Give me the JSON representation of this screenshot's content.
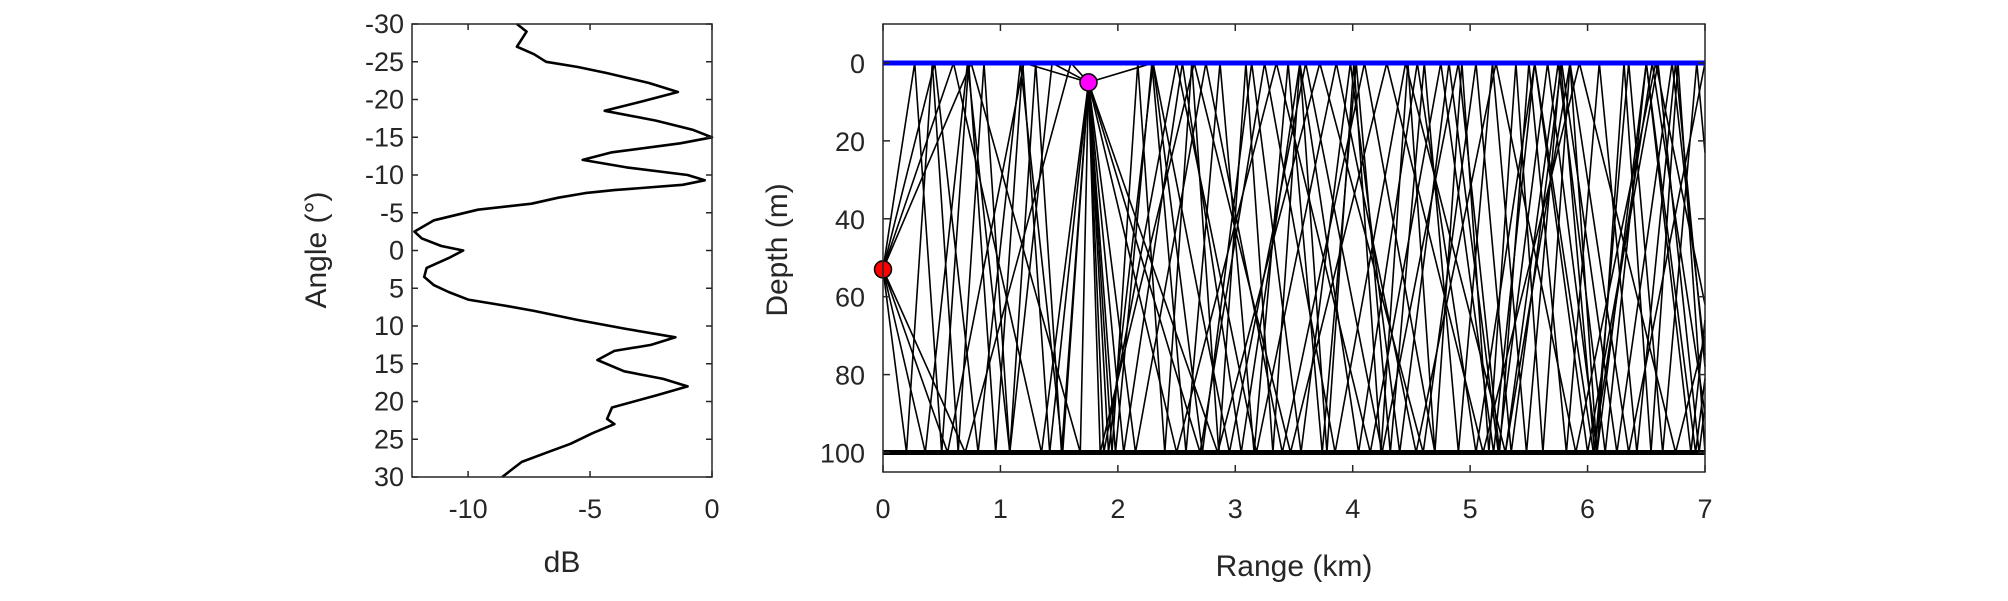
{
  "chart_data": [
    {
      "type": "line",
      "xlabel": "dB",
      "ylabel": "Angle (°)",
      "xlim": [
        -12.3,
        0
      ],
      "ylim": [
        -30,
        30
      ],
      "y_reversed": true,
      "xticks": [
        -10,
        -5,
        0
      ],
      "yticks": [
        -30,
        -25,
        -20,
        -15,
        -10,
        -5,
        0,
        5,
        10,
        15,
        20,
        25,
        30
      ],
      "grid": false,
      "series": [
        {
          "color": "#000000",
          "points": [
            [
              -8.0,
              -30
            ],
            [
              -7.6,
              -29
            ],
            [
              -7.8,
              -28
            ],
            [
              -8.0,
              -27
            ],
            [
              -7.3,
              -26
            ],
            [
              -6.8,
              -25
            ],
            [
              -5.5,
              -24.3
            ],
            [
              -4.3,
              -23.5
            ],
            [
              -2.6,
              -22.2
            ],
            [
              -1.4,
              -21
            ],
            [
              -2.8,
              -19.8
            ],
            [
              -4.4,
              -18.5
            ],
            [
              -2.3,
              -17.2
            ],
            [
              -0.8,
              -16
            ],
            [
              0,
              -15
            ],
            [
              -1.3,
              -14.2
            ],
            [
              -4.1,
              -13
            ],
            [
              -5.3,
              -12
            ],
            [
              -3.5,
              -11
            ],
            [
              -1.0,
              -10
            ],
            [
              -0.3,
              -9.3
            ],
            [
              -1.2,
              -8.7
            ],
            [
              -4.0,
              -8.0
            ],
            [
              -5.2,
              -7.6
            ],
            [
              -6.3,
              -7
            ],
            [
              -7.4,
              -6.2
            ],
            [
              -9.6,
              -5.4
            ],
            [
              -11.4,
              -4
            ],
            [
              -12.2,
              -2.5
            ],
            [
              -11.9,
              -1.6
            ],
            [
              -11.1,
              -0.6
            ],
            [
              -10.2,
              0
            ],
            [
              -10.8,
              1.0
            ],
            [
              -11.7,
              2.3
            ],
            [
              -11.8,
              3.5
            ],
            [
              -11.4,
              4.6
            ],
            [
              -10.8,
              5.5
            ],
            [
              -10.0,
              6.5
            ],
            [
              -8.5,
              7.3
            ],
            [
              -7.3,
              8
            ],
            [
              -5.5,
              9.2
            ],
            [
              -3.5,
              10.4
            ],
            [
              -1.5,
              11.5
            ],
            [
              -2.5,
              12.5
            ],
            [
              -4.0,
              13.3
            ],
            [
              -4.7,
              14.5
            ],
            [
              -3.6,
              16.0
            ],
            [
              -2.0,
              17
            ],
            [
              -1.0,
              18
            ],
            [
              -2.3,
              19.2
            ],
            [
              -4.1,
              20.8
            ],
            [
              -4.3,
              22.3
            ],
            [
              -4.0,
              23.0
            ],
            [
              -4.9,
              24.2
            ],
            [
              -5.8,
              25.6
            ],
            [
              -6.8,
              26.8
            ],
            [
              -7.8,
              28
            ],
            [
              -8.2,
              29
            ],
            [
              -8.6,
              30
            ]
          ]
        }
      ]
    },
    {
      "type": "line",
      "xlabel": "Range (km)",
      "ylabel": "Depth (m)",
      "xlim": [
        0,
        7
      ],
      "ylim": [
        -10,
        105
      ],
      "y_reversed": true,
      "xticks": [
        0,
        1,
        2,
        3,
        4,
        5,
        6,
        7
      ],
      "yticks": [
        0,
        20,
        40,
        60,
        80,
        100
      ],
      "grid": false,
      "surface": {
        "depth": 0,
        "color": "#0000ff"
      },
      "bottom": {
        "depth": 100,
        "color": "#000000"
      },
      "rays": [
        {
          "name": "steep-a",
          "points": [
            [
              0,
              53
            ],
            [
              0.2,
              100
            ],
            [
              0.42,
              0
            ],
            [
              0.64,
              100
            ],
            [
              0.86,
              0
            ],
            [
              1.08,
              100
            ],
            [
              1.3,
              0
            ],
            [
              1.52,
              100
            ],
            [
              1.75,
              5
            ]
          ]
        },
        {
          "name": "steep-b",
          "points": [
            [
              0,
              53
            ],
            [
              0.27,
              0
            ],
            [
              0.5,
              100
            ],
            [
              0.73,
              0
            ],
            [
              0.96,
              100
            ],
            [
              1.19,
              0
            ],
            [
              1.42,
              100
            ],
            [
              1.75,
              5
            ]
          ]
        },
        {
          "name": "mid-a",
          "points": [
            [
              0,
              53
            ],
            [
              0.36,
              100
            ],
            [
              0.72,
              0
            ],
            [
              1.08,
              100
            ],
            [
              1.44,
              0
            ],
            [
              1.75,
              5
            ]
          ]
        },
        {
          "name": "mid-b",
          "points": [
            [
              0,
              53
            ],
            [
              0.44,
              0
            ],
            [
              0.81,
              100
            ],
            [
              1.17,
              0
            ],
            [
              1.53,
              100
            ],
            [
              1.75,
              5
            ]
          ]
        },
        {
          "name": "shallow-a",
          "points": [
            [
              0,
              53
            ],
            [
              0.7,
              100
            ],
            [
              1.6,
              0
            ],
            [
              1.75,
              5
            ]
          ]
        },
        {
          "name": "shallow-b",
          "points": [
            [
              0,
              53
            ],
            [
              0.75,
              0
            ],
            [
              1.68,
              100
            ],
            [
              1.75,
              5
            ]
          ]
        },
        {
          "name": "shallow-c",
          "points": [
            [
              0,
              53
            ],
            [
              0.6,
              0
            ],
            [
              1.35,
              100
            ],
            [
              1.75,
              5
            ]
          ]
        },
        {
          "name": "shallow-d",
          "points": [
            [
              0,
              53
            ],
            [
              0.55,
              100
            ],
            [
              1.2,
              0
            ],
            [
              1.75,
              5
            ]
          ]
        },
        {
          "name": "grp1-1",
          "points": [
            [
              1.75,
              5
            ],
            [
              1.98,
              100
            ],
            [
              2.29,
              0
            ],
            [
              2.58,
              100
            ],
            [
              2.87,
              0
            ],
            [
              3.16,
              100
            ],
            [
              3.45,
              0
            ],
            [
              3.74,
              100
            ],
            [
              4.03,
              0
            ],
            [
              4.32,
              100
            ],
            [
              4.61,
              0
            ],
            [
              4.9,
              100
            ],
            [
              5.19,
              0
            ],
            [
              5.48,
              100
            ],
            [
              5.77,
              0
            ],
            [
              6.06,
              100
            ],
            [
              6.35,
              0
            ],
            [
              6.64,
              100
            ],
            [
              6.93,
              0
            ],
            [
              7,
              23
            ]
          ]
        },
        {
          "name": "grp1-2",
          "points": [
            [
              1.75,
              5
            ],
            [
              1.92,
              100
            ],
            [
              2.3,
              0
            ],
            [
              2.72,
              100
            ],
            [
              3.14,
              0
            ],
            [
              3.56,
              100
            ],
            [
              3.98,
              0
            ],
            [
              4.4,
              100
            ],
            [
              4.82,
              0
            ],
            [
              5.24,
              100
            ],
            [
              5.66,
              0
            ],
            [
              6.08,
              100
            ],
            [
              6.5,
              0
            ],
            [
              6.92,
              100
            ],
            [
              7,
              81
            ]
          ]
        },
        {
          "name": "grp1-3",
          "points": [
            [
              1.75,
              5
            ],
            [
              1.88,
              100
            ],
            [
              2.5,
              0
            ],
            [
              3.18,
              100
            ],
            [
              3.86,
              0
            ],
            [
              4.54,
              100
            ],
            [
              5.22,
              0
            ],
            [
              5.9,
              100
            ],
            [
              6.58,
              0
            ],
            [
              7,
              62
            ]
          ]
        },
        {
          "name": "grp1-4",
          "points": [
            [
              1.75,
              5
            ],
            [
              1.85,
              100
            ],
            [
              2.65,
              0
            ],
            [
              3.47,
              100
            ],
            [
              4.29,
              0
            ],
            [
              5.11,
              100
            ],
            [
              5.93,
              0
            ],
            [
              6.75,
              100
            ],
            [
              7,
              70
            ]
          ]
        },
        {
          "name": "grp1-5",
          "points": [
            [
              1.75,
              5
            ],
            [
              1.95,
              100
            ],
            [
              2.17,
              0
            ],
            [
              2.4,
              100
            ],
            [
              2.63,
              0
            ],
            [
              2.86,
              100
            ],
            [
              3.09,
              0
            ],
            [
              3.32,
              100
            ],
            [
              3.55,
              0
            ],
            [
              3.78,
              100
            ],
            [
              4.01,
              0
            ],
            [
              4.24,
              100
            ],
            [
              4.47,
              0
            ],
            [
              4.7,
              100
            ],
            [
              4.93,
              0
            ],
            [
              5.16,
              100
            ],
            [
              5.39,
              0
            ],
            [
              5.62,
              100
            ],
            [
              5.85,
              0
            ],
            [
              6.08,
              100
            ],
            [
              6.31,
              0
            ],
            [
              6.54,
              100
            ],
            [
              6.77,
              0
            ],
            [
              7,
              100
            ]
          ]
        },
        {
          "name": "grp1-6",
          "points": [
            [
              1.75,
              5
            ],
            [
              2.05,
              100
            ],
            [
              2.55,
              0
            ],
            [
              3.05,
              100
            ],
            [
              3.55,
              0
            ],
            [
              4.05,
              100
            ],
            [
              4.55,
              0
            ],
            [
              5.05,
              100
            ],
            [
              5.55,
              0
            ],
            [
              6.05,
              100
            ],
            [
              6.55,
              0
            ],
            [
              7,
              90
            ]
          ]
        },
        {
          "name": "grp2-1",
          "points": [
            [
              1.75,
              5
            ],
            [
              2.3,
              0
            ],
            [
              2.95,
              100
            ],
            [
              3.6,
              0
            ],
            [
              4.25,
              100
            ],
            [
              4.9,
              0
            ],
            [
              5.25,
              100
            ],
            [
              5.5,
              0
            ],
            [
              5.82,
              100
            ],
            [
              6.1,
              0
            ],
            [
              6.42,
              100
            ],
            [
              6.75,
              0
            ],
            [
              7,
              78
            ]
          ]
        },
        {
          "name": "grp2-2",
          "points": [
            [
              1.75,
              5
            ],
            [
              2.7,
              100
            ],
            [
              3.25,
              0
            ],
            [
              3.85,
              100
            ],
            [
              4.45,
              0
            ],
            [
              5.3,
              100
            ],
            [
              5.75,
              0
            ],
            [
              6.15,
              100
            ],
            [
              6.5,
              0
            ],
            [
              6.88,
              100
            ],
            [
              7,
              66
            ]
          ]
        },
        {
          "name": "grp2-3",
          "points": [
            [
              1.75,
              5
            ],
            [
              2.5,
              100
            ],
            [
              3.35,
              0
            ],
            [
              4.15,
              100
            ],
            [
              4.75,
              0
            ],
            [
              5.2,
              100
            ],
            [
              5.55,
              0
            ],
            [
              6.0,
              100
            ],
            [
              6.6,
              0
            ],
            [
              6.95,
              100
            ],
            [
              7,
              88
            ]
          ]
        },
        {
          "name": "grp2-4",
          "points": [
            [
              1.75,
              5
            ],
            [
              2.85,
              100
            ],
            [
              3.72,
              0
            ],
            [
              4.6,
              100
            ],
            [
              5.05,
              0
            ],
            [
              5.35,
              100
            ],
            [
              5.78,
              0
            ],
            [
              6.25,
              100
            ],
            [
              6.72,
              0
            ],
            [
              7,
              75
            ]
          ]
        },
        {
          "name": "grp2-5",
          "points": [
            [
              1.75,
              5
            ],
            [
              2.15,
              100
            ],
            [
              2.75,
              0
            ],
            [
              3.4,
              100
            ],
            [
              4.1,
              0
            ],
            [
              4.7,
              100
            ],
            [
              5.3,
              100
            ],
            [
              5.85,
              0
            ],
            [
              6.35,
              100
            ],
            [
              7,
              0
            ]
          ]
        }
      ],
      "markers": [
        {
          "name": "source",
          "x": 0,
          "y": 53,
          "color": "#ff0000"
        },
        {
          "name": "receiver",
          "x": 1.75,
          "y": 5,
          "color": "#ff00ff"
        }
      ]
    }
  ]
}
